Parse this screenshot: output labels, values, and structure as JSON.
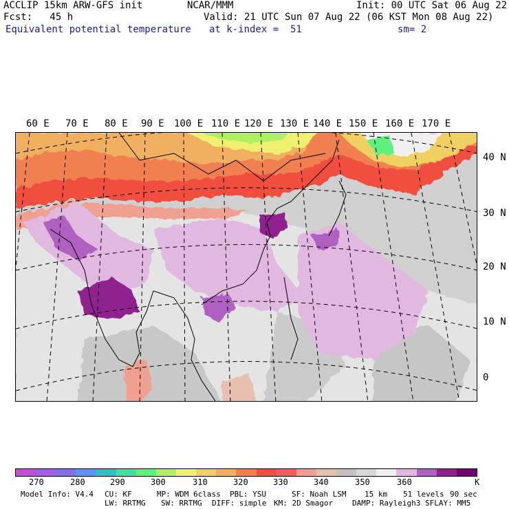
{
  "header": {
    "l1": "ACCLIP 15km ARW-GFS init",
    "l2": "Fcst:   45 h",
    "l3": "Equivalent potential temperature",
    "c1": "NCAR/MMM",
    "init": "Init: 00 UTC Sat 06 Aug 22",
    "valid": "Valid: 21 UTC Sun 07 Aug 22 (06 KST Mon 08 Aug 22)",
    "level": "at k-index =  51",
    "sm": "sm= 2"
  },
  "lon_labels": [
    "60 E",
    "70 E",
    "80 E",
    "90 E",
    "100 E",
    "110 E",
    "120 E",
    "130 E",
    "140 E",
    "150 E",
    "160 E",
    "170 E"
  ],
  "lat_labels": [
    "40 N",
    "30 N",
    "20 N",
    "10 N",
    "0"
  ],
  "colorbar": {
    "colors": [
      "#c050d0",
      "#a060e0",
      "#8070e0",
      "#6090f0",
      "#30c0c0",
      "#40e0a0",
      "#60f080",
      "#b0f060",
      "#f0f070",
      "#f0d060",
      "#f0b060",
      "#f08050",
      "#f05040",
      "#f06060",
      "#f0a090",
      "#e8c0b0",
      "#c8c0c0",
      "#d8d8d8",
      "#f0f0f0",
      "#e0b8e0",
      "#b060c0",
      "#902090",
      "#700070"
    ],
    "ticks": [
      "270",
      "280",
      "290",
      "300",
      "310",
      "320",
      "330",
      "340",
      "350",
      "360",
      "K"
    ]
  },
  "footer": {
    "model_info": "Model Info: V4.4",
    "cu": "CU: KF",
    "mp": "MP: WDM 6class",
    "pbl": "PBL: YSU",
    "sf": "SF: Noah LSM",
    "res": "15 km",
    "levels": "51 levels",
    "dt": "90 sec",
    "lw": "LW: RRTMG",
    "sw": "SW: RRTMG",
    "diff": "DIFF: simple",
    "km": "KM: 2D Smagor",
    "damp": "DAMP: Rayleigh3",
    "sflay": "SFLAY: MM5"
  }
}
